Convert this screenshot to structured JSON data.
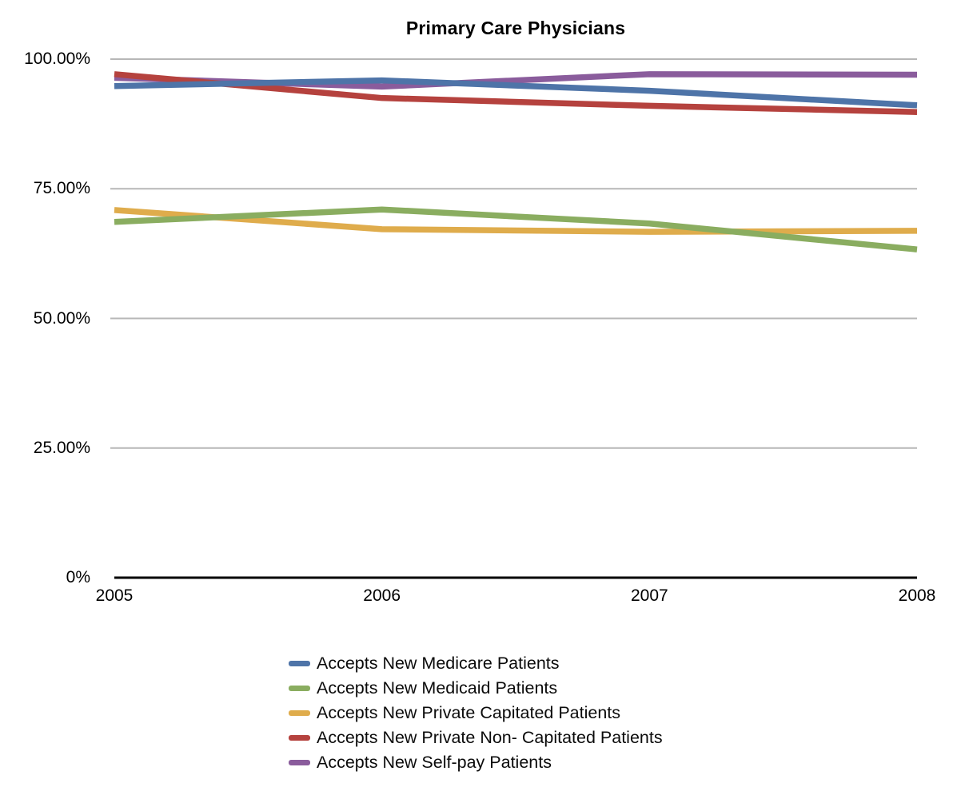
{
  "chart_data": {
    "type": "line",
    "title": "Primary Care Physicians",
    "xlabel": "",
    "ylabel": "",
    "x": [
      "2005",
      "2006",
      "2007",
      "2008"
    ],
    "series": [
      {
        "name": "Accepts New Medicare Patients",
        "color": "#4e74a8",
        "values": [
          94.8,
          95.9,
          93.9,
          91.1
        ]
      },
      {
        "name": "Accepts New Medicaid Patients",
        "color": "#8aad60",
        "values": [
          68.6,
          71.0,
          68.3,
          63.3
        ]
      },
      {
        "name": "Accepts New Private Capitated Patients",
        "color": "#dfac4c",
        "values": [
          70.9,
          67.2,
          66.7,
          66.9
        ]
      },
      {
        "name": "Accepts New Private Non- Capitated Patients",
        "color": "#b5423e",
        "values": [
          97.1,
          92.5,
          91.0,
          89.8
        ]
      },
      {
        "name": "Accepts New Self-pay Patients",
        "color": "#8a5c9c",
        "values": [
          96.4,
          94.7,
          97.1,
          97.0
        ]
      }
    ],
    "ylim": [
      0,
      100
    ],
    "yticks": [
      {
        "label": "100.00%",
        "value": 100
      },
      {
        "label": "75.00%",
        "value": 75
      },
      {
        "label": "50.00%",
        "value": 50
      },
      {
        "label": "25.00%",
        "value": 25
      },
      {
        "label": "0%",
        "value": 0
      }
    ],
    "grid": true,
    "gridline_color": "#b7b7b7",
    "axis_color": "#000000",
    "legend_position": "bottom"
  }
}
